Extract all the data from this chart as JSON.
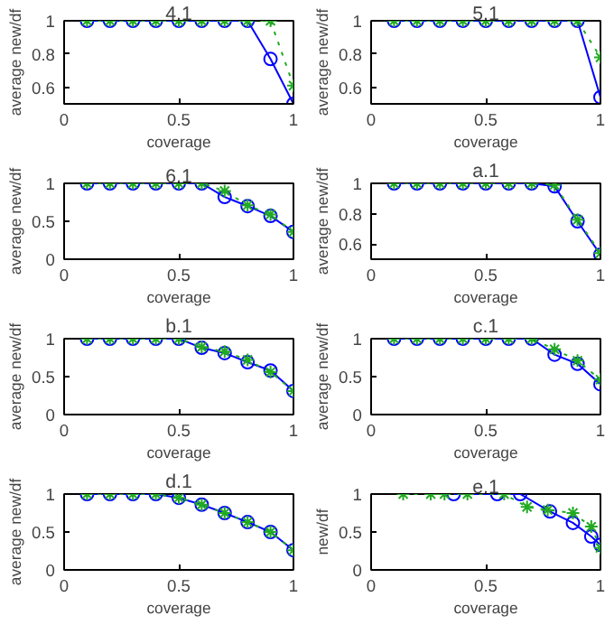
{
  "chart_data": [
    {
      "type": "line",
      "title": "4.1",
      "xlabel": "coverage",
      "ylabel": "average new/df",
      "xlim": [
        0,
        1
      ],
      "ylim": [
        0.5,
        1
      ],
      "xticks": [
        0,
        0.5,
        1
      ],
      "yticks": [
        0.6,
        0.8,
        1
      ],
      "grid": false,
      "x": [
        0.1,
        0.2,
        0.3,
        0.4,
        0.5,
        0.6,
        0.7,
        0.8,
        0.9,
        1.0
      ],
      "series": [
        {
          "color": "#0000ff",
          "marker": "circle",
          "line_style": "solid",
          "values": [
            1,
            1,
            1,
            1,
            1,
            1,
            1,
            1,
            0.77,
            0.5
          ]
        },
        {
          "color": "#22aa22",
          "marker": "cross",
          "line_style": "dotted",
          "values": [
            1,
            1,
            1,
            1,
            1,
            1,
            1,
            1,
            1,
            0.61
          ]
        }
      ]
    },
    {
      "type": "line",
      "title": "5.1",
      "xlabel": "coverage",
      "ylabel": "average new/df",
      "xlim": [
        0,
        1
      ],
      "ylim": [
        0.5,
        1
      ],
      "xticks": [
        0,
        0.5,
        1
      ],
      "yticks": [
        0.6,
        0.8,
        1
      ],
      "grid": false,
      "x": [
        0.1,
        0.2,
        0.3,
        0.4,
        0.5,
        0.6,
        0.7,
        0.8,
        0.9,
        1.0
      ],
      "series": [
        {
          "color": "#0000ff",
          "marker": "circle",
          "line_style": "solid",
          "values": [
            1,
            1,
            1,
            1,
            1,
            1,
            1,
            1,
            1,
            0.54
          ]
        },
        {
          "color": "#22aa22",
          "marker": "cross",
          "line_style": "dotted",
          "values": [
            1,
            1,
            1,
            1,
            1,
            1,
            1,
            1,
            1,
            0.78
          ]
        }
      ]
    },
    {
      "type": "line",
      "title": "6.1",
      "xlabel": "coverage",
      "ylabel": "average new/df",
      "xlim": [
        0,
        1
      ],
      "ylim": [
        0,
        1
      ],
      "xticks": [
        0,
        0.5,
        1
      ],
      "yticks": [
        0,
        0.5,
        1
      ],
      "grid": false,
      "x": [
        0.1,
        0.2,
        0.3,
        0.4,
        0.5,
        0.6,
        0.7,
        0.8,
        0.9,
        1.0
      ],
      "series": [
        {
          "color": "#0000ff",
          "marker": "circle",
          "line_style": "solid",
          "values": [
            1,
            1,
            1,
            1,
            1,
            1,
            0.82,
            0.7,
            0.57,
            0.36
          ]
        },
        {
          "color": "#22aa22",
          "marker": "cross",
          "line_style": "dotted",
          "values": [
            1,
            1,
            1,
            1,
            1,
            1,
            0.9,
            0.71,
            0.59,
            0.36
          ]
        }
      ]
    },
    {
      "type": "line",
      "title": "a.1",
      "xlabel": "coverage",
      "ylabel": "average new/df",
      "xlim": [
        0,
        1
      ],
      "ylim": [
        0.5,
        1
      ],
      "xticks": [
        0,
        0.5,
        1
      ],
      "yticks": [
        0.6,
        0.8,
        1
      ],
      "grid": false,
      "x": [
        0.1,
        0.2,
        0.3,
        0.4,
        0.5,
        0.6,
        0.7,
        0.8,
        0.9,
        1.0
      ],
      "series": [
        {
          "color": "#0000ff",
          "marker": "circle",
          "line_style": "solid",
          "values": [
            1,
            1,
            1,
            1,
            1,
            1,
            1,
            0.98,
            0.75,
            0.53
          ]
        },
        {
          "color": "#22aa22",
          "marker": "cross",
          "line_style": "dotted",
          "values": [
            1,
            1,
            1,
            1,
            1,
            1,
            1,
            0.99,
            0.76,
            0.54
          ]
        }
      ]
    },
    {
      "type": "line",
      "title": "b.1",
      "xlabel": "coverage",
      "ylabel": "average new/df",
      "xlim": [
        0,
        1
      ],
      "ylim": [
        0,
        1
      ],
      "xticks": [
        0,
        0.5,
        1
      ],
      "yticks": [
        0,
        0.5,
        1
      ],
      "grid": false,
      "x": [
        0.1,
        0.2,
        0.3,
        0.4,
        0.5,
        0.6,
        0.7,
        0.8,
        0.9,
        1.0
      ],
      "series": [
        {
          "color": "#0000ff",
          "marker": "circle",
          "line_style": "solid",
          "values": [
            1,
            1,
            1,
            1,
            1,
            0.88,
            0.81,
            0.69,
            0.58,
            0.31
          ]
        },
        {
          "color": "#22aa22",
          "marker": "cross",
          "line_style": "dotted",
          "values": [
            1,
            1,
            1,
            1,
            1,
            0.89,
            0.83,
            0.72,
            0.56,
            0.31
          ]
        }
      ]
    },
    {
      "type": "line",
      "title": "c.1",
      "xlabel": "coverage",
      "ylabel": "average new/df",
      "xlim": [
        0,
        1
      ],
      "ylim": [
        0,
        1
      ],
      "xticks": [
        0,
        0.5,
        1
      ],
      "yticks": [
        0,
        0.5,
        1
      ],
      "grid": false,
      "x": [
        0.1,
        0.2,
        0.3,
        0.4,
        0.5,
        0.6,
        0.7,
        0.8,
        0.9,
        1.0
      ],
      "series": [
        {
          "color": "#0000ff",
          "marker": "circle",
          "line_style": "solid",
          "values": [
            1,
            1,
            1,
            1,
            1,
            1,
            1,
            0.79,
            0.67,
            0.4
          ]
        },
        {
          "color": "#22aa22",
          "marker": "cross",
          "line_style": "dotted",
          "values": [
            1,
            1,
            1,
            1,
            1,
            1,
            1,
            0.86,
            0.71,
            0.46
          ]
        }
      ]
    },
    {
      "type": "line",
      "title": "d.1",
      "xlabel": "coverage",
      "ylabel": "average new/df",
      "xlim": [
        0,
        1
      ],
      "ylim": [
        0,
        1
      ],
      "xticks": [
        0,
        0.5,
        1
      ],
      "yticks": [
        0,
        0.5,
        1
      ],
      "grid": false,
      "x": [
        0.1,
        0.2,
        0.3,
        0.4,
        0.5,
        0.6,
        0.7,
        0.8,
        0.9,
        1.0
      ],
      "series": [
        {
          "color": "#0000ff",
          "marker": "circle",
          "line_style": "solid",
          "values": [
            1,
            1,
            1,
            1,
            0.95,
            0.86,
            0.75,
            0.63,
            0.5,
            0.26
          ]
        },
        {
          "color": "#22aa22",
          "marker": "cross",
          "line_style": "dotted",
          "values": [
            1,
            1,
            1,
            1,
            0.95,
            0.86,
            0.75,
            0.63,
            0.5,
            0.26
          ]
        }
      ]
    },
    {
      "type": "line",
      "title": "e.1",
      "xlabel": "coverage",
      "ylabel": "new/df",
      "xlim": [
        0,
        1
      ],
      "ylim": [
        0,
        1
      ],
      "xticks": [
        0,
        0.5,
        1
      ],
      "yticks": [
        0,
        0.5,
        1
      ],
      "grid": false,
      "series": [
        {
          "color": "#0000ff",
          "marker": "circle",
          "line_style": "solid",
          "x": [
            0.36,
            0.55,
            0.65,
            0.78,
            0.88,
            0.96,
            1.0
          ],
          "values": [
            1,
            1,
            1,
            0.77,
            0.62,
            0.44,
            0.33
          ]
        },
        {
          "color": "#22aa22",
          "marker": "cross",
          "line_style": "dotted",
          "x": [
            0.14,
            0.26,
            0.32,
            0.42,
            0.58,
            0.68,
            0.77,
            0.88,
            0.96,
            1.0
          ],
          "values": [
            1,
            1,
            1,
            1,
            1,
            0.83,
            0.79,
            0.75,
            0.57,
            0.29
          ]
        }
      ]
    }
  ]
}
